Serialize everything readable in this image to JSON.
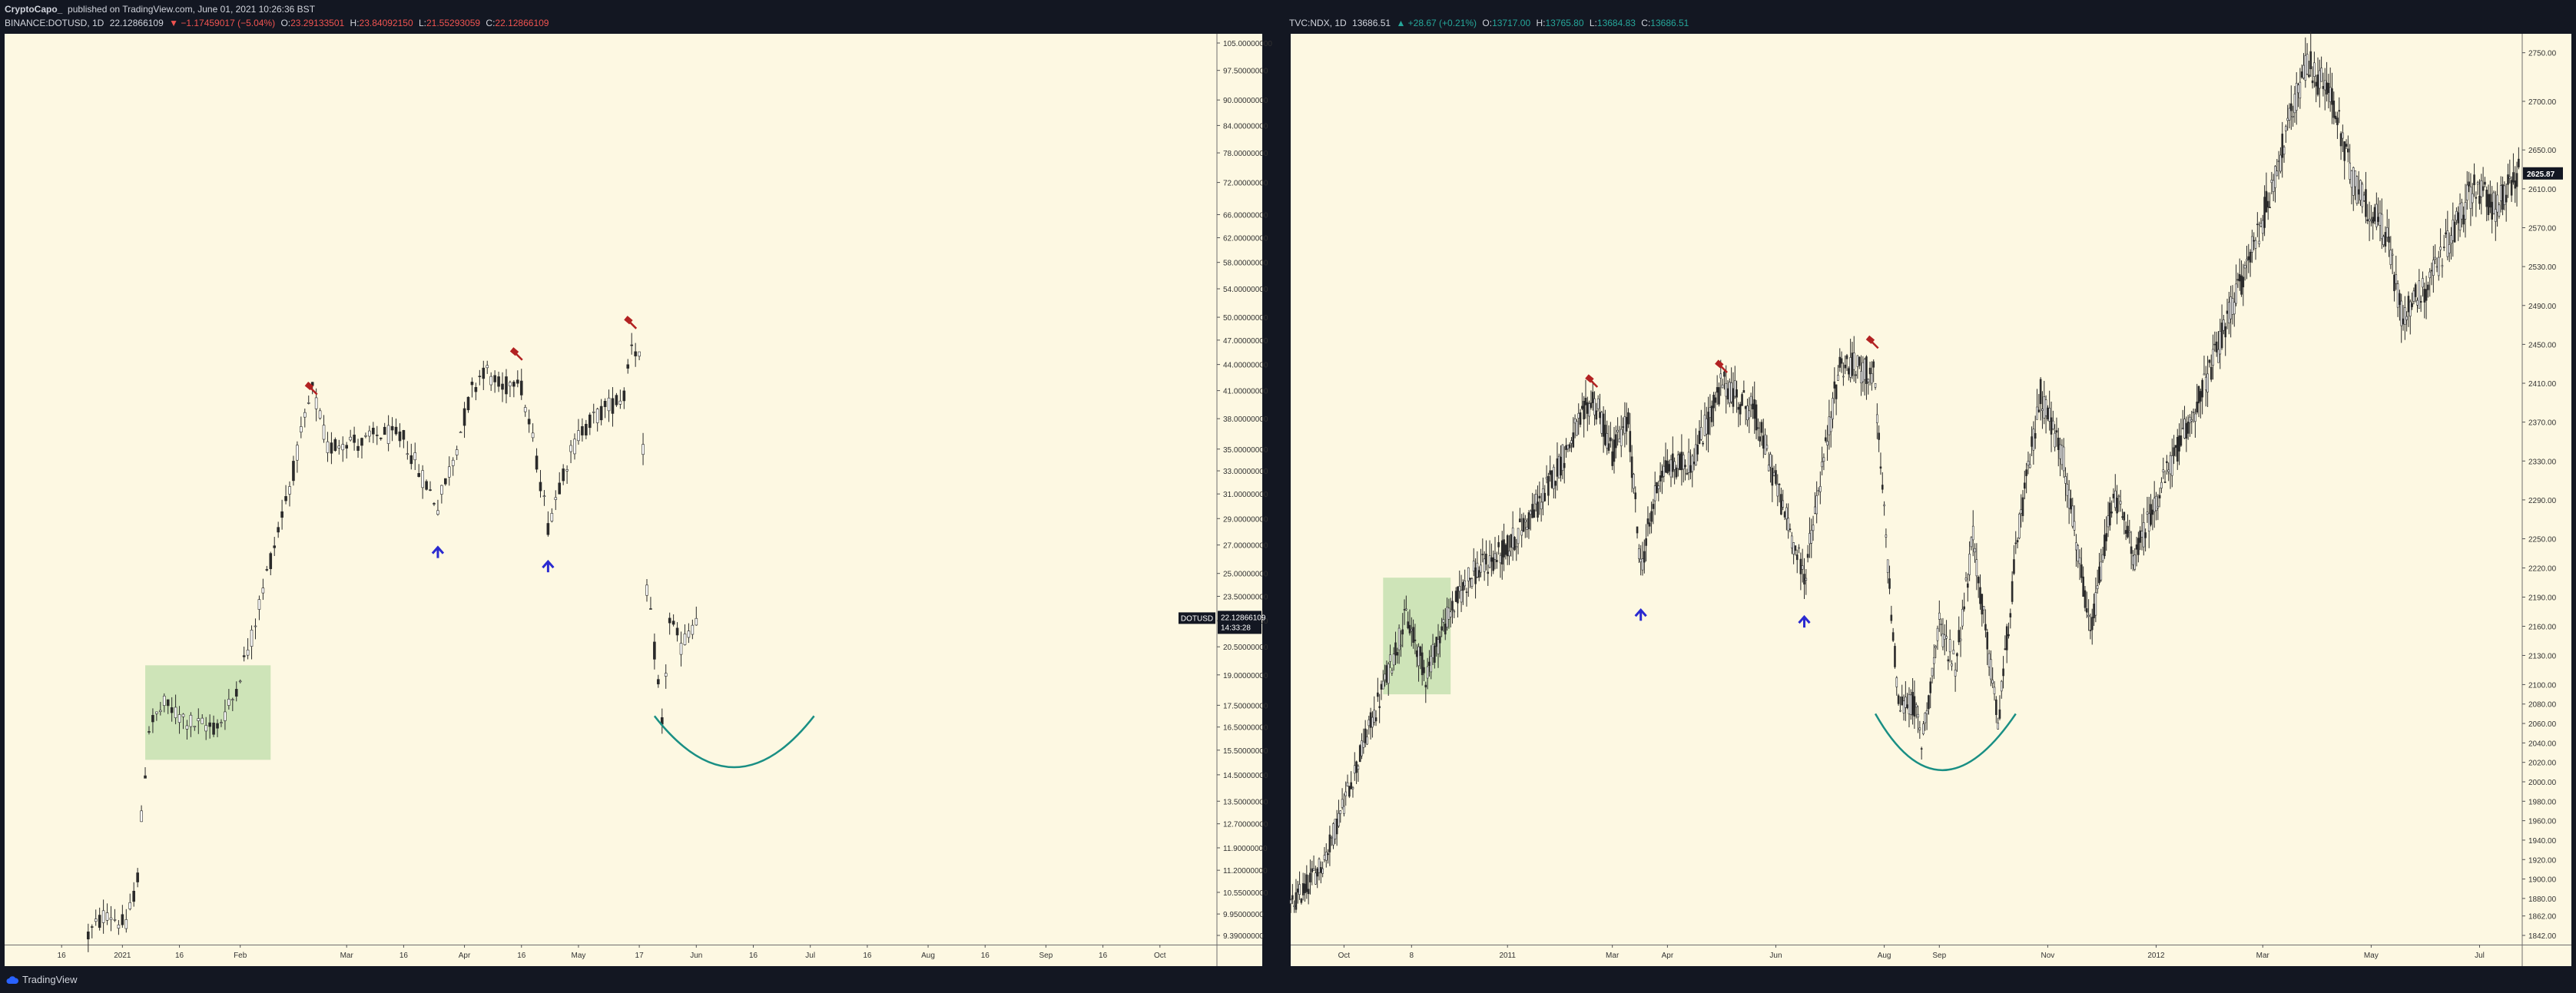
{
  "header": {
    "author": "CryptoCapo_",
    "published_text": "published on TradingView.com, June 01, 2021 10:26:36 BST"
  },
  "left_header": {
    "symbol": "BINANCE:DOTUSD, 1D",
    "last": "22.12866109",
    "change": "▼ −1.17459017 (−5.04%)",
    "o_label": "O:",
    "o": "23.29133501",
    "h_label": "H:",
    "h": "23.84092150",
    "l_label": "L:",
    "l": "21.55293059",
    "c_label": "C:",
    "c": "22.12866109"
  },
  "right_header": {
    "symbol": "TVC:NDX, 1D",
    "last": "13686.51",
    "change": "▲ +28.67 (+0.21%)",
    "o_label": "O:",
    "o": "13717.00",
    "h_label": "H:",
    "h": "13765.80",
    "l_label": "L:",
    "l": "13684.83",
    "c_label": "C:",
    "c": "13686.51"
  },
  "footer": {
    "brand": "TradingView"
  },
  "colors": {
    "background": "#fdf8e2",
    "frame": "#131722",
    "candle": "#2a2a2a",
    "marker_red": "#b22222",
    "marker_blue": "#2a2ad0",
    "curve": "#1a8f84",
    "zone": "#c5e1b0"
  },
  "chart_data": [
    {
      "type": "candlestick",
      "symbol": "BINANCE:DOTUSD",
      "interval": "1D",
      "scale": "log",
      "ylim": [
        9.39,
        105.0
      ],
      "y_ticks": [
        105.0,
        97.5,
        90.0,
        84.0,
        78.0,
        72.0,
        66.0,
        62.0,
        58.0,
        54.0,
        50.0,
        47.0,
        44.0,
        41.0,
        38.0,
        35.0,
        33.0,
        31.0,
        29.0,
        27.0,
        25.0,
        23.5,
        22.0,
        20.5,
        19.0,
        17.5,
        16.5,
        15.5,
        14.5,
        13.5,
        12.7,
        11.9,
        11.2,
        10.55,
        9.95,
        9.39
      ],
      "y_tick_labels": [
        "105.00000000",
        "97.50000000",
        "90.00000000",
        "84.00000000",
        "78.00000000",
        "72.00000000",
        "66.00000000",
        "62.00000000",
        "58.00000000",
        "54.00000000",
        "50.00000000",
        "47.00000000",
        "44.00000000",
        "41.00000000",
        "38.00000000",
        "35.00000000",
        "33.00000000",
        "31.00000000",
        "29.00000000",
        "27.00000000",
        "25.00000000",
        "23.50000000",
        "22.00000000",
        "20.50000000",
        "19.00000000",
        "17.50000000",
        "16.50000000",
        "15.50000000",
        "14.50000000",
        "13.50000000",
        "12.70000000",
        "11.90000000",
        "11.20000000",
        "10.55000000",
        "9.95000000",
        "9.39000000"
      ],
      "x_tick_labels": [
        "16",
        "2021",
        "16",
        "Feb",
        "Mar",
        "16",
        "Apr",
        "16",
        "May",
        "17",
        "Jun",
        "16",
        "Jul",
        "16",
        "Aug",
        "16",
        "Sep",
        "16",
        "Oct"
      ],
      "x_ticks": [
        "2020-12-16",
        "2021-01-01",
        "2021-01-16",
        "2021-02-01",
        "2021-03-01",
        "2021-03-16",
        "2021-04-01",
        "2021-04-16",
        "2021-05-01",
        "2021-05-17",
        "2021-06-01",
        "2021-06-16",
        "2021-07-01",
        "2021-07-16",
        "2021-08-01",
        "2021-08-16",
        "2021-09-01",
        "2021-09-16",
        "2021-10-01"
      ],
      "xlim": [
        "2020-12-01",
        "2021-10-16"
      ],
      "price_label": {
        "symbol": "DOTUSD",
        "value": "22.12866109",
        "countdown": "14:33:28",
        "y": 22.13
      },
      "path": [
        {
          "x": "2020-12-23",
          "y": 9.4
        },
        {
          "x": "2020-12-28",
          "y": 10.0
        },
        {
          "x": "2021-01-02",
          "y": 9.6
        },
        {
          "x": "2021-01-05",
          "y": 11.0
        },
        {
          "x": "2021-01-08",
          "y": 16.5
        },
        {
          "x": "2021-01-12",
          "y": 17.5
        },
        {
          "x": "2021-01-16",
          "y": 17.0
        },
        {
          "x": "2021-01-20",
          "y": 16.6
        },
        {
          "x": "2021-01-26",
          "y": 16.5
        },
        {
          "x": "2021-01-30",
          "y": 17.8
        },
        {
          "x": "2021-02-04",
          "y": 21.0
        },
        {
          "x": "2021-02-10",
          "y": 27.0
        },
        {
          "x": "2021-02-15",
          "y": 33.0
        },
        {
          "x": "2021-02-20",
          "y": 41.0
        },
        {
          "x": "2021-02-24",
          "y": 35.0
        },
        {
          "x": "2021-03-01",
          "y": 36.0
        },
        {
          "x": "2021-03-05",
          "y": 35.5
        },
        {
          "x": "2021-03-10",
          "y": 36.5
        },
        {
          "x": "2021-03-16",
          "y": 36.0
        },
        {
          "x": "2021-03-20",
          "y": 33.0
        },
        {
          "x": "2021-03-25",
          "y": 30.0
        },
        {
          "x": "2021-03-29",
          "y": 34.0
        },
        {
          "x": "2021-04-03",
          "y": 41.0
        },
        {
          "x": "2021-04-06",
          "y": 43.5
        },
        {
          "x": "2021-04-11",
          "y": 41.0
        },
        {
          "x": "2021-04-15",
          "y": 43.0
        },
        {
          "x": "2021-04-18",
          "y": 37.5
        },
        {
          "x": "2021-04-23",
          "y": 28.5
        },
        {
          "x": "2021-04-27",
          "y": 33.0
        },
        {
          "x": "2021-05-02",
          "y": 37.0
        },
        {
          "x": "2021-05-08",
          "y": 39.0
        },
        {
          "x": "2021-05-13",
          "y": 40.5
        },
        {
          "x": "2021-05-15",
          "y": 47.0
        },
        {
          "x": "2021-05-17",
          "y": 45.0
        },
        {
          "x": "2021-05-19",
          "y": 24.0
        },
        {
          "x": "2021-05-23",
          "y": 16.5
        },
        {
          "x": "2021-05-25",
          "y": 22.0
        },
        {
          "x": "2021-05-28",
          "y": 20.5
        },
        {
          "x": "2021-06-01",
          "y": 22.1
        }
      ],
      "annotations": {
        "sell_markers": [
          {
            "x": "2021-02-20",
            "y": 41.0
          },
          {
            "x": "2021-04-15",
            "y": 45.0
          },
          {
            "x": "2021-05-15",
            "y": 49.0
          }
        ],
        "buy_markers": [
          {
            "x": "2021-03-25",
            "y": 26.5
          },
          {
            "x": "2021-04-23",
            "y": 25.5
          }
        ],
        "zone": {
          "x0": "2021-01-07",
          "x1": "2021-02-09",
          "y0": 15.1,
          "y1": 19.5
        },
        "curve": {
          "x0": "2021-05-21",
          "x1": "2021-07-02",
          "x_mid": "2021-06-11",
          "y_ends": 17.0,
          "y_bottom": 14.8
        }
      }
    },
    {
      "type": "candlestick",
      "symbol": "TVC:NDX",
      "interval": "1D",
      "scale": "linear",
      "ylim": [
        1842,
        2760
      ],
      "y_ticks": [
        2750,
        2700,
        2650,
        2610,
        2570,
        2530,
        2490,
        2450,
        2410,
        2370,
        2330,
        2290,
        2250,
        2220,
        2190,
        2160,
        2130,
        2100,
        2080,
        2060,
        2040,
        2020,
        2000,
        1980,
        1960,
        1940,
        1920,
        1900,
        1880,
        1862,
        1842
      ],
      "y_tick_labels": [
        "2750.00",
        "2700.00",
        "2650.00",
        "2610.00",
        "2570.00",
        "2530.00",
        "2490.00",
        "2450.00",
        "2410.00",
        "2370.00",
        "2330.00",
        "2290.00",
        "2250.00",
        "2220.00",
        "2190.00",
        "2160.00",
        "2130.00",
        "2100.00",
        "2080.00",
        "2060.00",
        "2040.00",
        "2020.00",
        "2000.00",
        "1980.00",
        "1960.00",
        "1940.00",
        "1920.00",
        "1900.00",
        "1880.00",
        "1862.00",
        "1842.00"
      ],
      "x_tick_labels": [
        "Oct",
        "8",
        "2011",
        "Mar",
        "Apr",
        "Jun",
        "Aug",
        "Sep",
        "Nov",
        "2012",
        "Mar",
        "May",
        "Jul"
      ],
      "x_ticks": [
        "2010-10-01",
        "2010-11-08",
        "2011-01-01",
        "2011-03-01",
        "2011-04-01",
        "2011-06-01",
        "2011-08-01",
        "2011-09-01",
        "2011-11-01",
        "2012-01-01",
        "2012-03-01",
        "2012-05-01",
        "2012-07-01"
      ],
      "xlim": [
        "2010-09-01",
        "2012-07-25"
      ],
      "price_label": {
        "value": "2625.87",
        "y": 2625.87
      },
      "path": [
        {
          "x": "2010-09-01",
          "y": 1870
        },
        {
          "x": "2010-09-20",
          "y": 1920
        },
        {
          "x": "2010-10-05",
          "y": 2000
        },
        {
          "x": "2010-10-20",
          "y": 2080
        },
        {
          "x": "2010-11-05",
          "y": 2170
        },
        {
          "x": "2010-11-16",
          "y": 2110
        },
        {
          "x": "2010-11-26",
          "y": 2160
        },
        {
          "x": "2010-12-10",
          "y": 2210
        },
        {
          "x": "2011-01-01",
          "y": 2240
        },
        {
          "x": "2011-01-20",
          "y": 2290
        },
        {
          "x": "2011-02-18",
          "y": 2395
        },
        {
          "x": "2011-03-01",
          "y": 2340
        },
        {
          "x": "2011-03-10",
          "y": 2370
        },
        {
          "x": "2011-03-17",
          "y": 2220
        },
        {
          "x": "2011-03-28",
          "y": 2320
        },
        {
          "x": "2011-04-15",
          "y": 2330
        },
        {
          "x": "2011-05-02",
          "y": 2410
        },
        {
          "x": "2011-05-20",
          "y": 2380
        },
        {
          "x": "2011-06-17",
          "y": 2210
        },
        {
          "x": "2011-07-07",
          "y": 2430
        },
        {
          "x": "2011-07-26",
          "y": 2420
        },
        {
          "x": "2011-08-09",
          "y": 2080
        },
        {
          "x": "2011-08-18",
          "y": 2080
        },
        {
          "x": "2011-08-22",
          "y": 2040
        },
        {
          "x": "2011-09-01",
          "y": 2160
        },
        {
          "x": "2011-09-10",
          "y": 2120
        },
        {
          "x": "2011-09-20",
          "y": 2250
        },
        {
          "x": "2011-10-04",
          "y": 2060
        },
        {
          "x": "2011-10-15",
          "y": 2250
        },
        {
          "x": "2011-10-28",
          "y": 2400
        },
        {
          "x": "2011-11-10",
          "y": 2330
        },
        {
          "x": "2011-11-25",
          "y": 2150
        },
        {
          "x": "2011-12-08",
          "y": 2300
        },
        {
          "x": "2011-12-20",
          "y": 2230
        },
        {
          "x": "2012-01-01",
          "y": 2290
        },
        {
          "x": "2012-01-31",
          "y": 2420
        },
        {
          "x": "2012-03-01",
          "y": 2580
        },
        {
          "x": "2012-03-26",
          "y": 2740
        },
        {
          "x": "2012-04-10",
          "y": 2700
        },
        {
          "x": "2012-04-20",
          "y": 2620
        },
        {
          "x": "2012-05-10",
          "y": 2560
        },
        {
          "x": "2012-05-18",
          "y": 2480
        },
        {
          "x": "2012-06-01",
          "y": 2510
        },
        {
          "x": "2012-06-20",
          "y": 2580
        },
        {
          "x": "2012-06-28",
          "y": 2615
        },
        {
          "x": "2012-07-10",
          "y": 2590
        },
        {
          "x": "2012-07-23",
          "y": 2626
        }
      ],
      "annotations": {
        "sell_markers": [
          {
            "x": "2011-02-18",
            "y": 2410
          },
          {
            "x": "2011-05-02",
            "y": 2425
          },
          {
            "x": "2011-07-26",
            "y": 2450
          }
        ],
        "buy_markers": [
          {
            "x": "2011-03-17",
            "y": 2172
          },
          {
            "x": "2011-06-17",
            "y": 2165
          }
        ],
        "zone": {
          "x0": "2010-10-23",
          "x1": "2010-11-30",
          "y0": 2090,
          "y1": 2210
        },
        "curve": {
          "x0": "2011-07-27",
          "x1": "2011-10-14",
          "x_mid": "2011-09-01",
          "y_ends": 2070,
          "y_bottom": 2012
        }
      }
    }
  ]
}
